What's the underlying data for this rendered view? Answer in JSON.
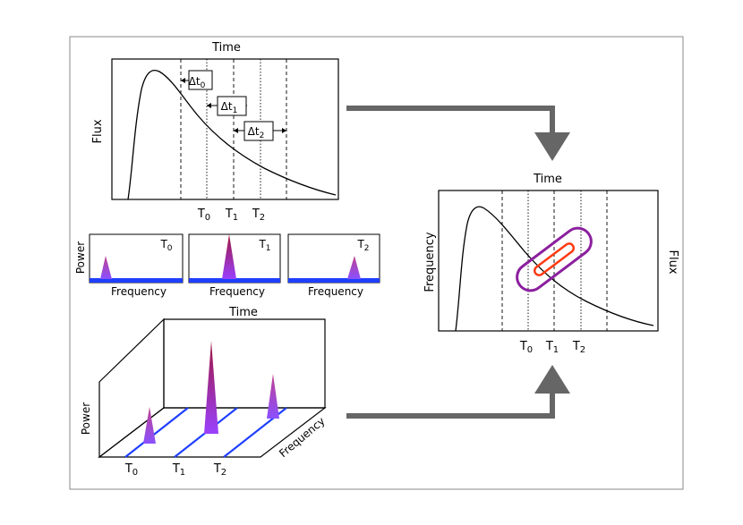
{
  "panel_top": {
    "title": "Time",
    "ylabel": "Flux",
    "ticks": [
      "T",
      "T",
      "T"
    ],
    "tick_subs": [
      "0",
      "1",
      "2"
    ],
    "deltas": [
      {
        "main": "Δt",
        "sub": "0"
      },
      {
        "main": "Δt",
        "sub": "1"
      },
      {
        "main": "Δt",
        "sub": "2"
      }
    ]
  },
  "spectra": [
    {
      "label": "T",
      "sub": "0",
      "xlabel": "Frequency",
      "ylabel": "Power"
    },
    {
      "label": "T",
      "sub": "1",
      "xlabel": "Frequency",
      "ylabel": ""
    },
    {
      "label": "T",
      "sub": "2",
      "xlabel": "Frequency",
      "ylabel": ""
    }
  ],
  "panel_3d": {
    "title": "Time",
    "ylabel": "Power",
    "depth_label": "Frequency",
    "ticks": [
      "T",
      "T",
      "T"
    ],
    "tick_subs": [
      "0",
      "1",
      "2"
    ]
  },
  "panel_right": {
    "title": "Time",
    "ylabel": "Frequency",
    "right_label": "Flux",
    "ticks": [
      "T",
      "T",
      "T"
    ],
    "tick_subs": [
      "0",
      "1",
      "2"
    ]
  },
  "colors": {
    "frame": "#888888",
    "arrow": "#666666",
    "baseline_blue": "#1f3fff",
    "peak_top": "#9b1f4a",
    "peak_bottom": "#9a3cff",
    "ellipse_outer": "#8b1f9e",
    "ellipse_inner": "#ff3a12"
  }
}
